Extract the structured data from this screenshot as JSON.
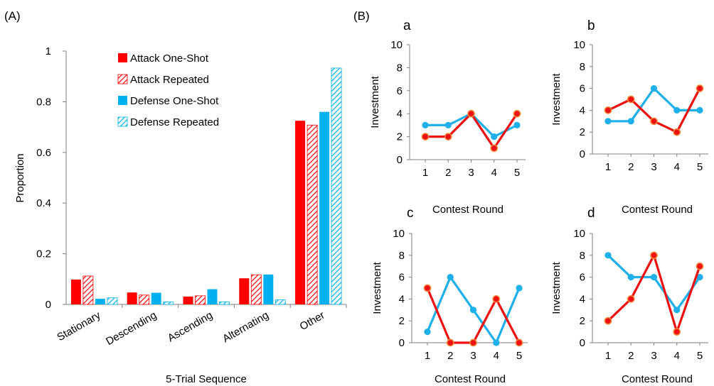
{
  "panel_labels": {
    "a": "(A)",
    "b": "(B)"
  },
  "chart_data": [
    {
      "type": "bar",
      "title": "",
      "xlabel": "5-Trial Sequence",
      "ylabel": "Proportion",
      "ylim": [
        0,
        1
      ],
      "yticks": [
        "0",
        "0.2",
        "0.4",
        "0.6",
        "0.8",
        "1"
      ],
      "categories": [
        "Stationary",
        "Descending",
        "Ascending",
        "Alternating",
        "Other"
      ],
      "legend_position": "top-center",
      "series": [
        {
          "name": "Attack One-Shot",
          "color": "#ff0000",
          "pattern": "solid",
          "values": [
            0.098,
            0.047,
            0.031,
            0.103,
            0.725
          ]
        },
        {
          "name": "Attack Repeated",
          "color": "#ff0000",
          "pattern": "hatched",
          "values": [
            0.112,
            0.037,
            0.034,
            0.117,
            0.708
          ]
        },
        {
          "name": "Defense One-Shot",
          "color": "#00b0f0",
          "pattern": "solid",
          "values": [
            0.022,
            0.046,
            0.06,
            0.118,
            0.76
          ]
        },
        {
          "name": "Defense Repeated",
          "color": "#00b0f0",
          "pattern": "hatched",
          "values": [
            0.026,
            0.01,
            0.01,
            0.018,
            0.933
          ]
        }
      ]
    },
    {
      "type": "line",
      "label": "a",
      "xlabel": "Contest Round",
      "ylabel": "Investment",
      "x": [
        1,
        2,
        3,
        4,
        5
      ],
      "ylim": [
        0,
        10
      ],
      "yticks": [
        "0",
        "2",
        "4",
        "6",
        "8",
        "10"
      ],
      "series": [
        {
          "color": "#1fb0ea",
          "values": [
            3,
            3,
            4,
            2,
            3
          ]
        },
        {
          "color": "#ee1111",
          "values": [
            2,
            2,
            4,
            1,
            4
          ]
        }
      ]
    },
    {
      "type": "line",
      "label": "b",
      "xlabel": "Contest Round",
      "ylabel": "Investment",
      "x": [
        1,
        2,
        3,
        4,
        5
      ],
      "ylim": [
        0,
        10
      ],
      "yticks": [
        "0",
        "2",
        "4",
        "6",
        "8",
        "10"
      ],
      "series": [
        {
          "color": "#1fb0ea",
          "values": [
            3,
            3,
            6,
            4,
            4
          ]
        },
        {
          "color": "#ee1111",
          "values": [
            4,
            5,
            3,
            2,
            6
          ]
        }
      ]
    },
    {
      "type": "line",
      "label": "c",
      "xlabel": "Contest Round",
      "ylabel": "Investment",
      "x": [
        1,
        2,
        3,
        4,
        5
      ],
      "ylim": [
        0,
        10
      ],
      "yticks": [
        "0",
        "2",
        "4",
        "6",
        "8",
        "10"
      ],
      "series": [
        {
          "color": "#1fb0ea",
          "values": [
            1,
            6,
            3,
            0,
            5
          ]
        },
        {
          "color": "#ee1111",
          "values": [
            5,
            0,
            0,
            4,
            0
          ]
        }
      ]
    },
    {
      "type": "line",
      "label": "d",
      "xlabel": "Contest Round",
      "ylabel": "Investment",
      "x": [
        1,
        2,
        3,
        4,
        5
      ],
      "ylim": [
        0,
        10
      ],
      "yticks": [
        "0",
        "2",
        "4",
        "6",
        "8",
        "10"
      ],
      "series": [
        {
          "color": "#1fb0ea",
          "values": [
            8,
            6,
            6,
            3,
            6
          ]
        },
        {
          "color": "#ee1111",
          "values": [
            2,
            4,
            8,
            1,
            7
          ]
        }
      ]
    }
  ]
}
